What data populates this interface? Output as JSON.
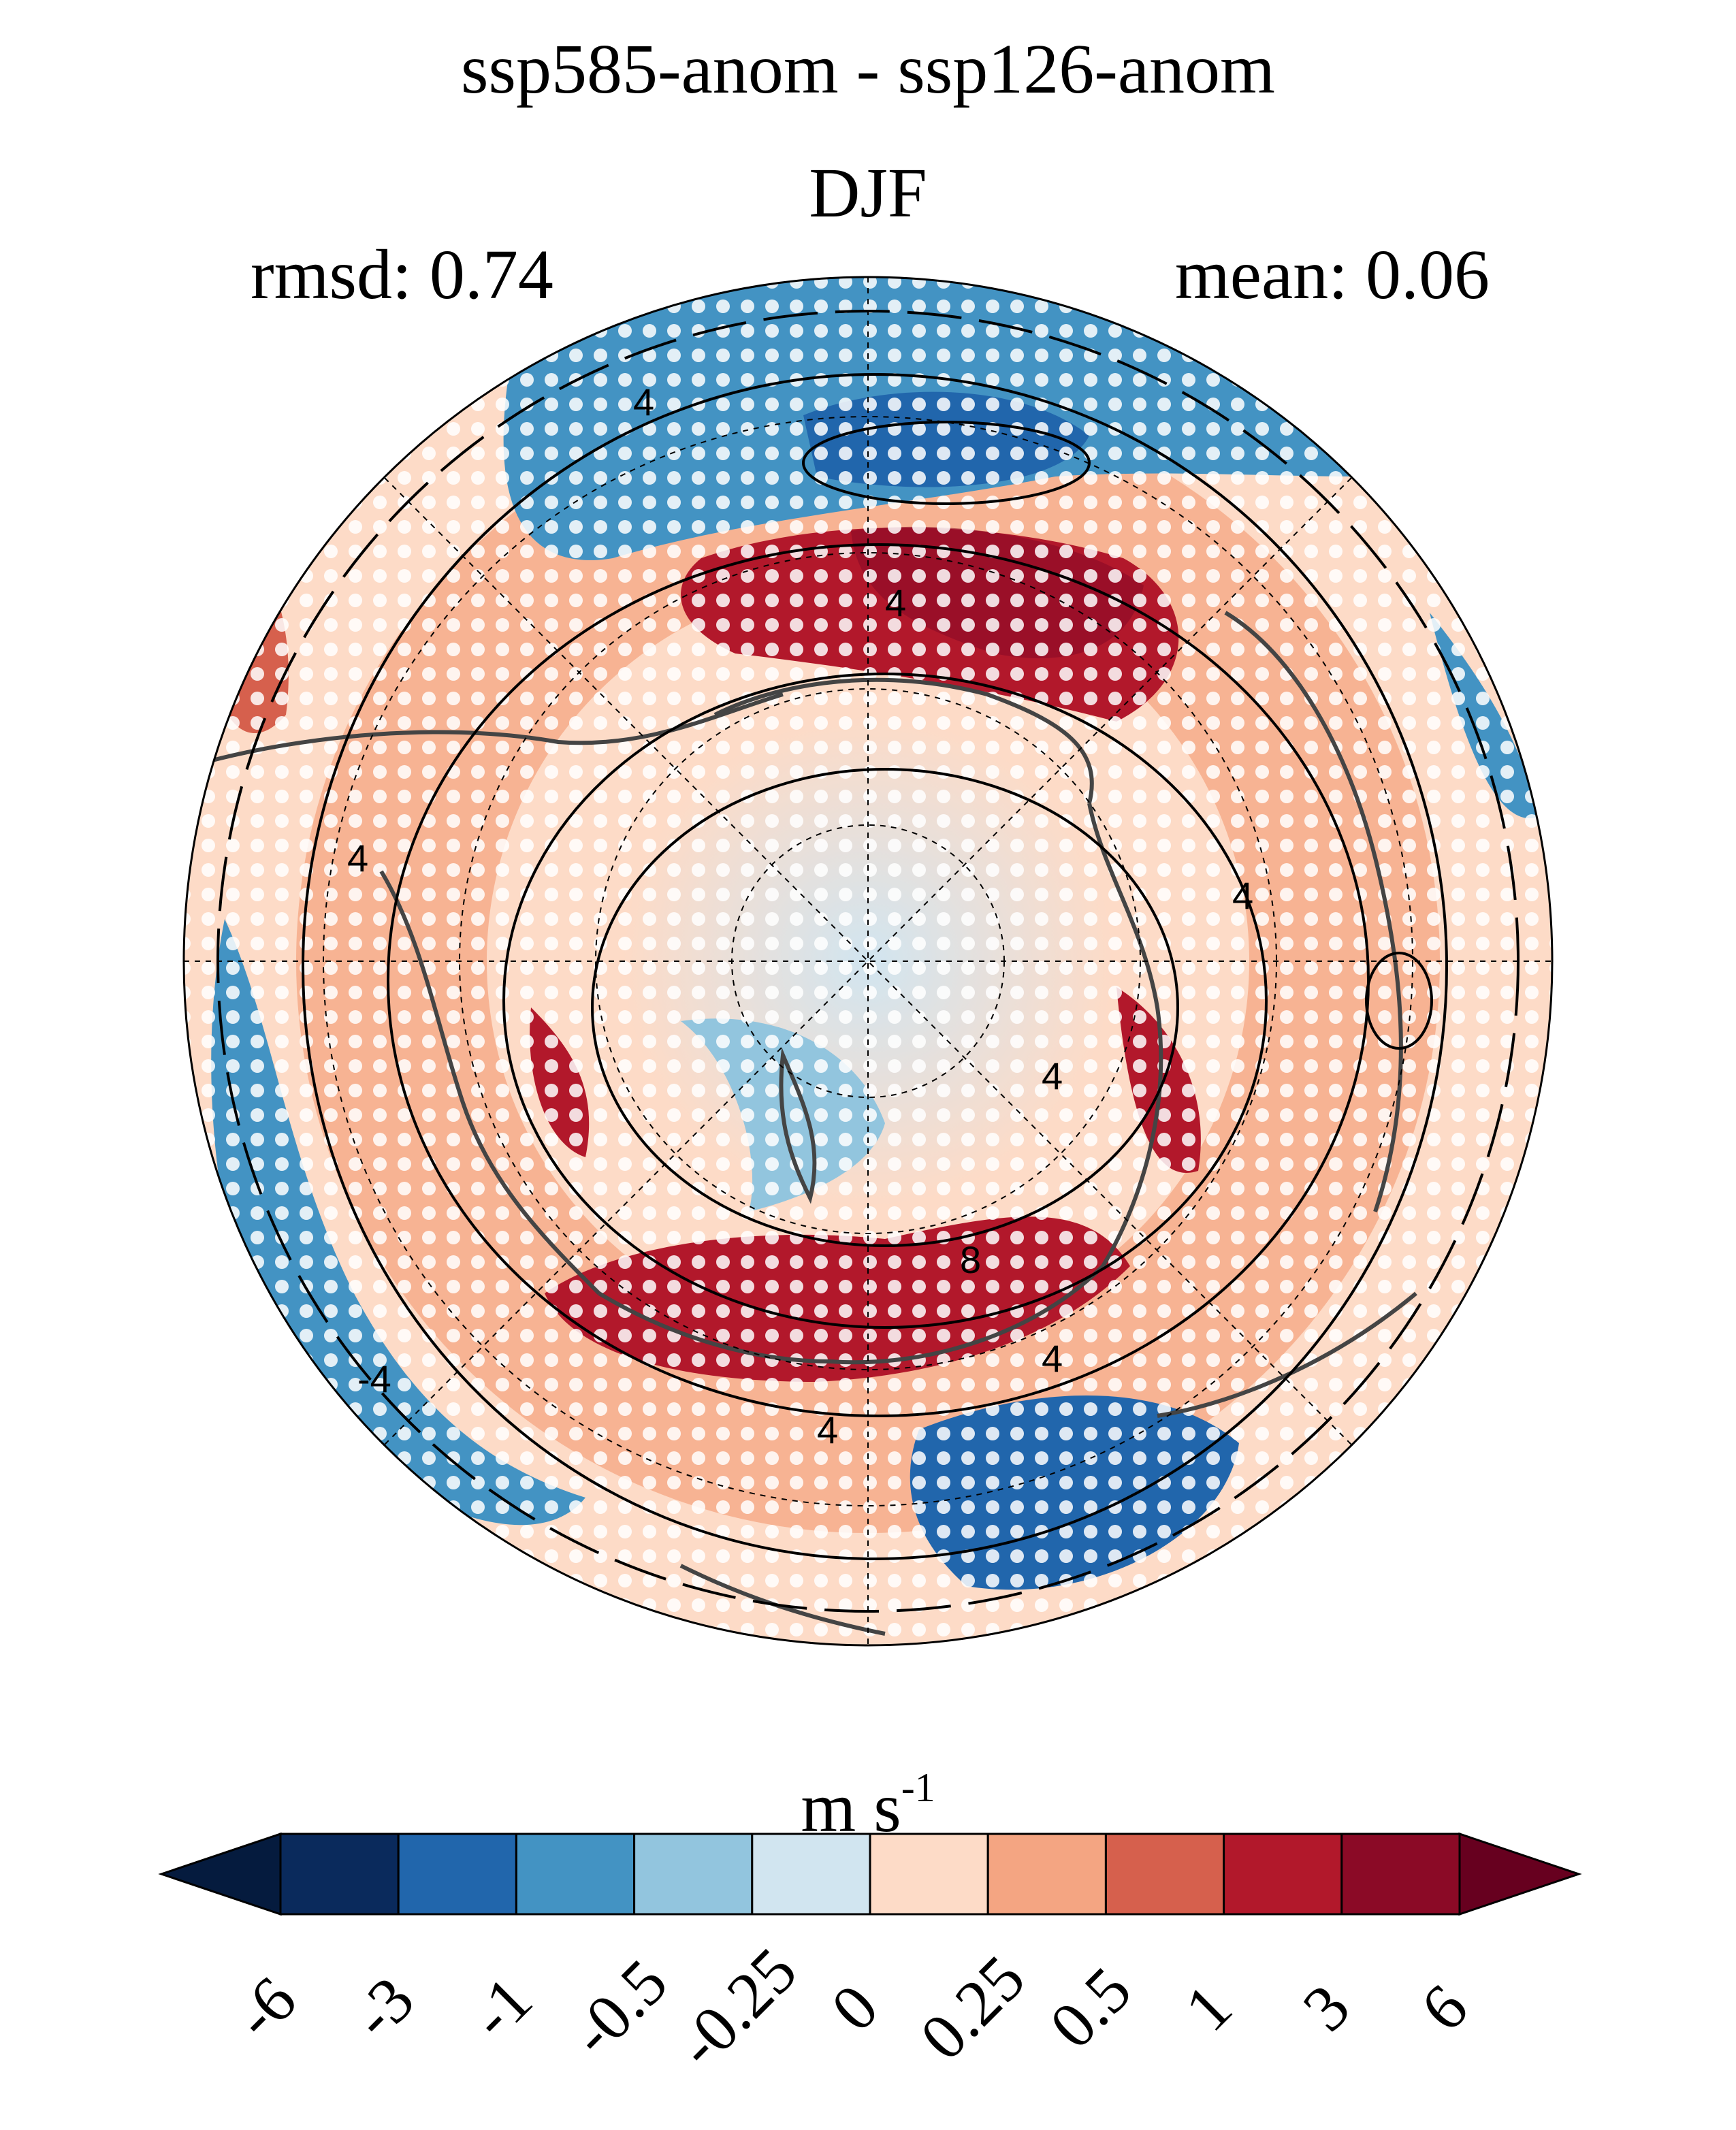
{
  "title": "ssp585-anom - ssp126-anom",
  "subtitle": "DJF",
  "stats": {
    "rmsd": "rmsd: 0.74",
    "mean": "mean: 0.06"
  },
  "colorbar": {
    "units_base": "m s",
    "units_exp": "-1",
    "ticks": [
      "-6",
      "-3",
      "-1",
      "-0.5",
      "-0.25",
      "0",
      "0.25",
      "0.5",
      "1",
      "3",
      "6"
    ],
    "colors": [
      "#0a2a5c",
      "#2166ac",
      "#4393c3",
      "#92c5de",
      "#d1e5f0",
      "#fddbc7",
      "#f4a582",
      "#d6604d",
      "#b2182b",
      "#8b0a26"
    ],
    "under_color": "#051b3e",
    "over_color": "#67001f"
  },
  "contour_labels": [
    "4",
    "4",
    "4",
    "4",
    "4",
    "4",
    "4",
    "-4",
    "8"
  ],
  "map": {
    "projection": "north polar stereographic",
    "stippling": "white dots"
  }
}
